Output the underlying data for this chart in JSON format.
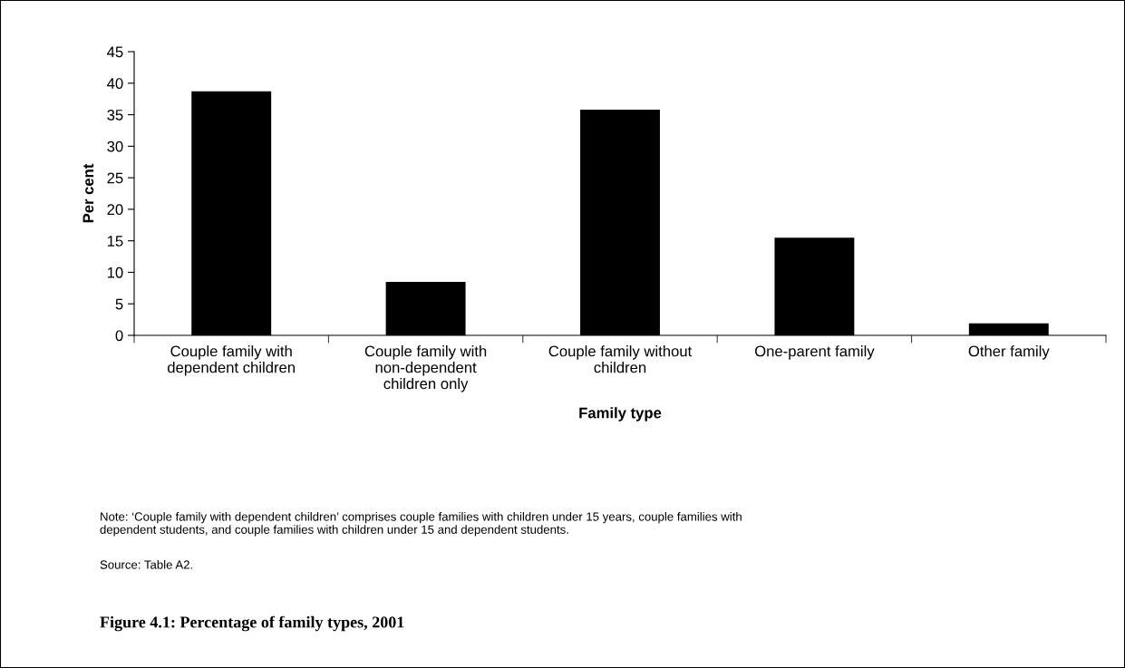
{
  "chart_data": {
    "type": "bar",
    "title": "Figure 4.1: Percentage of family types, 2001",
    "xlabel": "Family type",
    "ylabel": "Per cent",
    "categories": [
      "Couple family with\ndependent children",
      "Couple family with\nnon-dependent\nchildren only",
      "Couple family without\nchildren",
      "One-parent family",
      "Other family"
    ],
    "values": [
      38.7,
      8.5,
      35.8,
      15.5,
      1.9
    ],
    "color": "#000000",
    "ylim": [
      0,
      45
    ],
    "yticks": [
      0,
      5,
      10,
      15,
      20,
      25,
      30,
      35,
      40,
      45
    ],
    "grid": false,
    "legend": false,
    "annotations": [
      "Note: ‘Couple family with dependent children’ comprises couple families with children under 15 years, couple families with\ndependent students, and couple families with children under 15 and dependent students.",
      "Source: Table A2."
    ]
  }
}
